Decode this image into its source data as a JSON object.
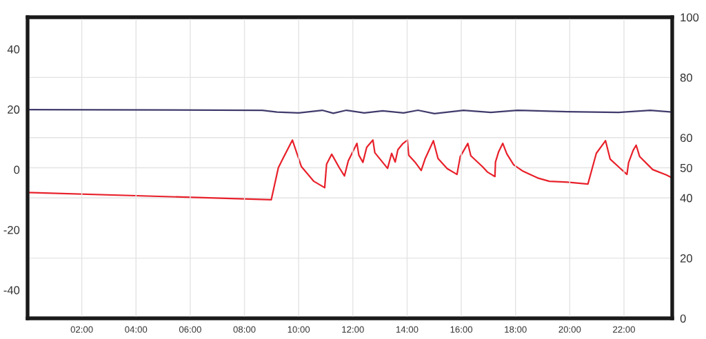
{
  "chart_data": {
    "type": "line",
    "xlim": [
      0,
      23.78
    ],
    "xticks": [
      {
        "value": 2,
        "label": "02:00"
      },
      {
        "value": 4,
        "label": "04:00"
      },
      {
        "value": 6,
        "label": "06:00"
      },
      {
        "value": 8,
        "label": "08:00"
      },
      {
        "value": 10,
        "label": "10:00"
      },
      {
        "value": 12,
        "label": "12:00"
      },
      {
        "value": 14,
        "label": "14:00"
      },
      {
        "value": 16,
        "label": "16:00"
      },
      {
        "value": 18,
        "label": "18:00"
      },
      {
        "value": 20,
        "label": "20:00"
      },
      {
        "value": 22,
        "label": "22:00"
      }
    ],
    "ylim": [
      -49.4,
      50.6
    ],
    "yticks": [
      -40,
      -20,
      0,
      20,
      40
    ],
    "y2lim": [
      0,
      100
    ],
    "y2ticks": [
      0,
      20,
      40,
      50,
      60,
      80,
      100
    ],
    "grid": true,
    "series": [
      {
        "color": "#3f3a6b",
        "x": [
          0,
          8.66,
          9.2,
          10.0,
          10.87,
          11.28,
          11.76,
          12.42,
          13.1,
          13.87,
          14.4,
          15.01,
          16.08,
          17.09,
          18.06,
          19.92,
          21.8,
          22.97,
          23.78
        ],
        "values": [
          19.9,
          19.7,
          19.1,
          18.8,
          19.7,
          18.7,
          19.7,
          18.8,
          19.5,
          18.8,
          19.7,
          18.6,
          19.7,
          19.0,
          19.7,
          19.2,
          19.0,
          19.7,
          19.1
        ]
      },
      {
        "color": "#e8202a",
        "axis": "y2",
        "x": [
          0,
          8.99,
          9.25,
          9.42,
          9.77,
          10.1,
          10.56,
          10.96,
          11.03,
          11.22,
          11.5,
          11.69,
          11.83,
          12.15,
          12.22,
          12.37,
          12.51,
          12.74,
          12.81,
          13.28,
          13.43,
          13.56,
          13.66,
          13.83,
          14.01,
          14.06,
          14.29,
          14.52,
          14.67,
          14.97,
          15.14,
          15.48,
          15.84,
          15.96,
          16.24,
          16.35,
          16.79,
          16.96,
          17.24,
          17.26,
          17.38,
          17.53,
          17.68,
          17.93,
          18.27,
          18.82,
          19.25,
          19.92,
          20.67,
          20.98,
          21.32,
          21.49,
          21.79,
          22.11,
          22.17,
          22.34,
          22.45,
          22.58,
          23.06,
          23.57,
          23.78
        ],
        "values": [
          41.8,
          39.4,
          50.0,
          53.1,
          59.2,
          50.4,
          45.5,
          43.4,
          51.2,
          54.5,
          50.0,
          47.3,
          52.3,
          58.1,
          54.2,
          51.8,
          56.8,
          59.2,
          55.0,
          49.8,
          54.8,
          51.9,
          56.0,
          57.9,
          59.2,
          54.2,
          51.9,
          49.1,
          53.1,
          59.0,
          53.1,
          49.7,
          47.8,
          53.7,
          58.1,
          54.0,
          50.3,
          48.6,
          47.1,
          51.9,
          55.4,
          58.1,
          54.6,
          51.0,
          48.9,
          46.6,
          45.5,
          45.2,
          44.6,
          54.8,
          59.0,
          52.9,
          50.4,
          47.8,
          51.7,
          55.8,
          57.5,
          53.7,
          49.4,
          47.6,
          46.6
        ]
      }
    ]
  }
}
